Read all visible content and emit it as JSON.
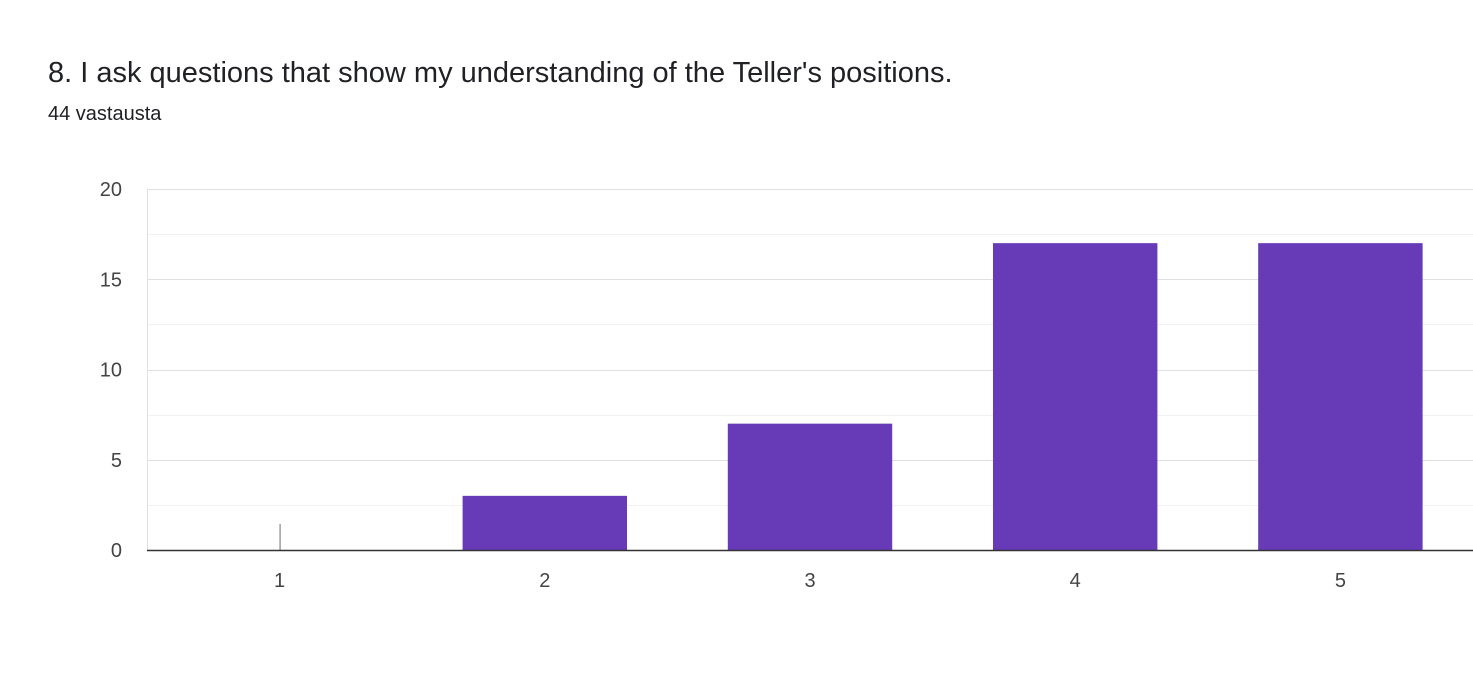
{
  "question": {
    "title": "8. I ask questions that show my understanding of the Teller's positions.",
    "response_count": "44 vastausta"
  },
  "colors": {
    "bar": "#673ab7",
    "grid_major": "#e0e0e0",
    "grid_minor": "#f1f1f1",
    "axis": "#333333",
    "zero_marker": "#9e9e9e"
  },
  "chart_data": {
    "type": "bar",
    "categories": [
      "1",
      "2",
      "3",
      "4",
      "5"
    ],
    "values": [
      0,
      3,
      7,
      17,
      17
    ],
    "yticks": [
      0,
      5,
      10,
      15,
      20
    ],
    "ylim": [
      0,
      20
    ],
    "grid": true,
    "legend": "none"
  }
}
